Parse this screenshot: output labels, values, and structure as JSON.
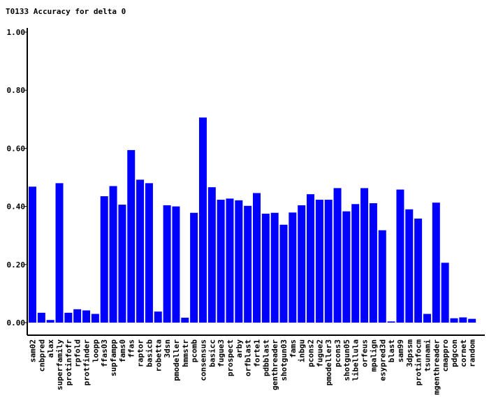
{
  "chart_data": {
    "type": "bar",
    "title": "T0133 Accuracy for delta 0",
    "xlabel": "",
    "ylabel": "",
    "ylim": [
      0,
      1
    ],
    "ytick_labels": [
      "0.00",
      "0.20",
      "0.40",
      "0.60",
      "0.80",
      "1.00"
    ],
    "grid": false,
    "legend": "none",
    "bar_color": "#0000ff",
    "categories": [
      "sam02",
      "cnbpred",
      "alax",
      "superfamily",
      "protinfofr",
      "rpfold",
      "protfinder",
      "loopp",
      "ffas03",
      "supfampp",
      "fams0",
      "ffas",
      "raptor",
      "basicb",
      "robetta",
      "3dsn",
      "pmodeller",
      "hmmstr",
      "pcomb",
      "consensus",
      "basicc",
      "fugue3",
      "prospect",
      "arby",
      "orfblast",
      "forte1",
      "pdbblast",
      "genthreader",
      "shotgun03",
      "fams",
      "inbgu",
      "pcons2",
      "fugue2",
      "pmodeller3",
      "pcons3",
      "shotgun05",
      "libellula",
      "orfeus",
      "mpalign",
      "esypred3d",
      "blast",
      "sam99",
      "3dpssm",
      "protinfocm",
      "tsunami",
      "mgenthreader",
      "cmappro",
      "pdgcon",
      "cornet",
      "random"
    ],
    "values": [
      0.468,
      0.034,
      0.009,
      0.48,
      0.034,
      0.046,
      0.042,
      0.03,
      0.435,
      0.47,
      0.406,
      0.594,
      0.492,
      0.48,
      0.038,
      0.404,
      0.4,
      0.017,
      0.378,
      0.706,
      0.466,
      0.423,
      0.427,
      0.421,
      0.402,
      0.446,
      0.375,
      0.378,
      0.337,
      0.379,
      0.404,
      0.442,
      0.423,
      0.423,
      0.463,
      0.383,
      0.408,
      0.463,
      0.411,
      0.318,
      0.004,
      0.458,
      0.39,
      0.358,
      0.03,
      0.413,
      0.206,
      0.015,
      0.018,
      0.013
    ]
  }
}
